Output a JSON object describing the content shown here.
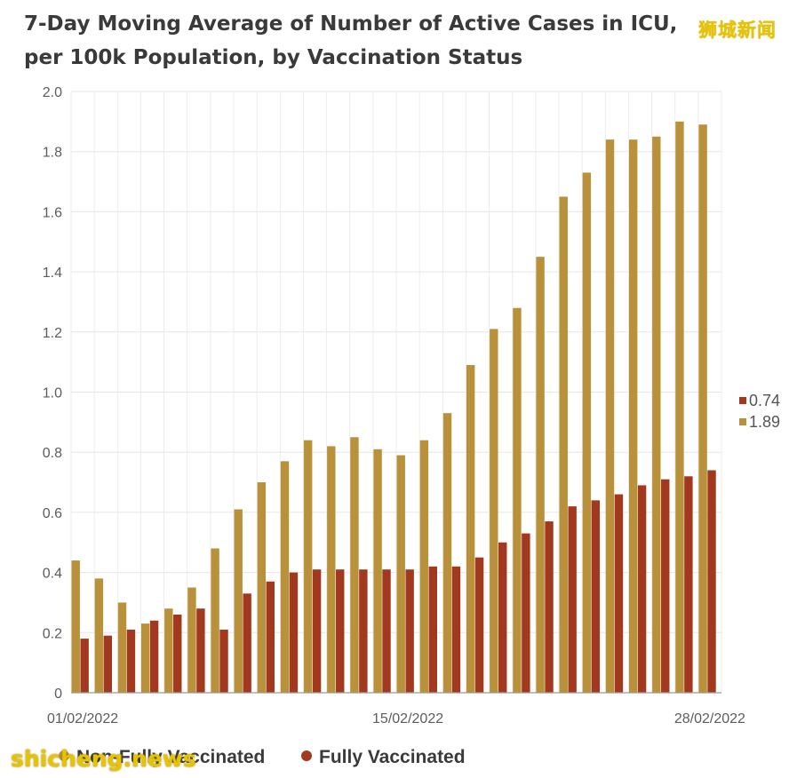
{
  "chart_data": {
    "type": "bar",
    "title": "7-Day Moving Average of Number of Active Cases in ICU, per 100k Population, by Vaccination Status",
    "xlabel": "",
    "ylabel": "",
    "ylim": [
      0,
      2.0
    ],
    "yticks": [
      0,
      0.2,
      0.4,
      0.6,
      0.8,
      1.0,
      1.2,
      1.4,
      1.6,
      1.8,
      2.0
    ],
    "ytick_labels": [
      "0",
      "0.2",
      "0.4",
      "0.6",
      "0.8",
      "1.0",
      "1.2",
      "1.4",
      "1.6",
      "1.8",
      "2.0"
    ],
    "x_tick_labels": [
      {
        "label": "01/02/2022",
        "index": 0
      },
      {
        "label": "15/02/2022",
        "index": 14
      },
      {
        "label": "28/02/2022",
        "index": 27
      }
    ],
    "categories": [
      "01/02/2022",
      "02/02/2022",
      "03/02/2022",
      "04/02/2022",
      "05/02/2022",
      "06/02/2022",
      "07/02/2022",
      "08/02/2022",
      "09/02/2022",
      "10/02/2022",
      "11/02/2022",
      "12/02/2022",
      "13/02/2022",
      "14/02/2022",
      "15/02/2022",
      "16/02/2022",
      "17/02/2022",
      "18/02/2022",
      "19/02/2022",
      "20/02/2022",
      "21/02/2022",
      "22/02/2022",
      "23/02/2022",
      "24/02/2022",
      "25/02/2022",
      "26/02/2022",
      "27/02/2022",
      "28/02/2022"
    ],
    "series": [
      {
        "name": "Non-Fully Vaccinated",
        "color": "#b8913a",
        "values": [
          0.44,
          0.38,
          0.3,
          0.23,
          0.28,
          0.35,
          0.48,
          0.61,
          0.7,
          0.77,
          0.84,
          0.82,
          0.85,
          0.81,
          0.79,
          0.84,
          0.93,
          1.09,
          1.21,
          1.28,
          1.45,
          1.65,
          1.73,
          1.84,
          1.84,
          1.85,
          1.9,
          1.89
        ]
      },
      {
        "name": "Fully Vaccinated",
        "color": "#a2391f",
        "values": [
          0.18,
          0.19,
          0.21,
          0.24,
          0.26,
          0.28,
          0.21,
          0.33,
          0.37,
          0.4,
          0.41,
          0.41,
          0.41,
          0.41,
          0.41,
          0.42,
          0.42,
          0.45,
          0.5,
          0.53,
          0.57,
          0.62,
          0.64,
          0.66,
          0.69,
          0.71,
          0.72,
          0.74
        ]
      }
    ],
    "end_labels": [
      {
        "text": "0.74",
        "color": "#a2391f"
      },
      {
        "text": "1.89",
        "color": "#b8913a"
      }
    ],
    "legend_placement": "bottom",
    "grid": true
  },
  "watermarks": {
    "top_right": "狮城新闻",
    "bottom_left": "shicheng.news"
  }
}
